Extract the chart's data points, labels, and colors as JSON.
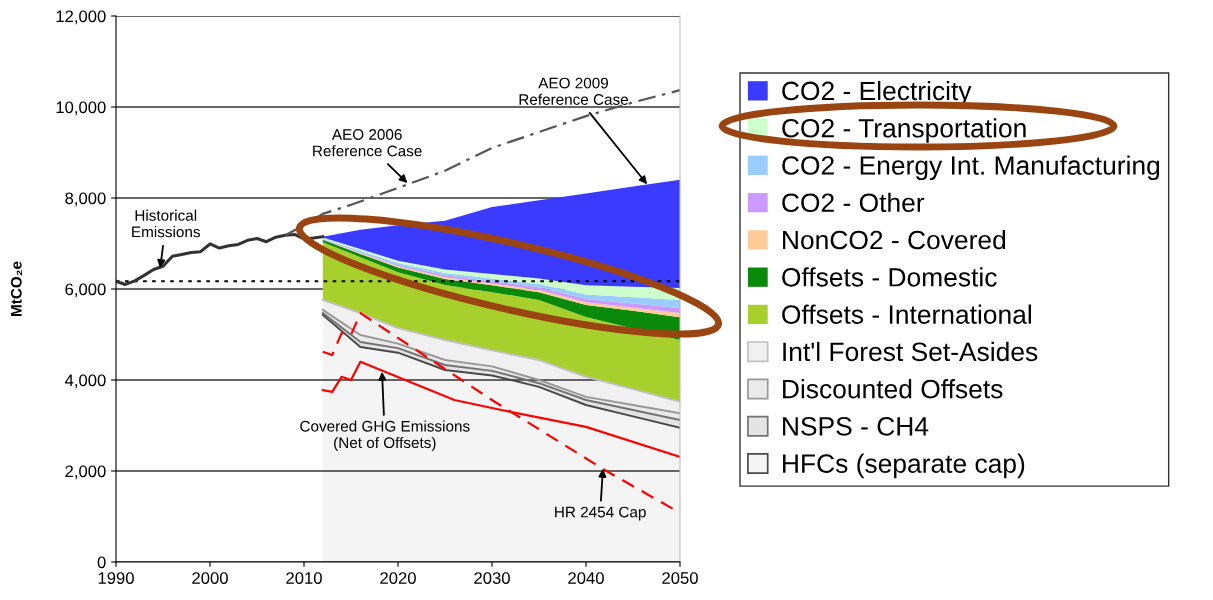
{
  "chart_data": {
    "type": "area",
    "stacked": true,
    "ylabel": "MtCO₂e",
    "x": [
      2012,
      2016,
      2020,
      2025,
      2030,
      2035,
      2040,
      2045,
      2050
    ],
    "xlim": [
      1990,
      2050
    ],
    "xticks": [
      1990,
      2000,
      2010,
      2020,
      2030,
      2040,
      2050
    ],
    "ylim": [
      0,
      12000
    ],
    "yticks": [
      0,
      {
        "value": 2000,
        "label": "2,000"
      },
      {
        "value": 4000,
        "label": "4,000"
      },
      {
        "value": 6000,
        "label": "6,000"
      },
      {
        "value": 8000,
        "label": "8,000"
      },
      {
        "value": 10000,
        "label": "10,000"
      },
      {
        "value": 12000,
        "label": "12,000"
      }
    ],
    "grid": "y",
    "legend": "right",
    "series": [
      {
        "name": "HFCs (separate cap)",
        "color": "#f4f4f4",
        "values": [
          5430,
          4725,
          4600,
          4220,
          4100,
          3850,
          3450,
          3200,
          2950
        ]
      },
      {
        "name": "NSPS - CH4",
        "color": "#e4e4e4",
        "values": [
          40,
          110,
          100,
          110,
          100,
          80,
          110,
          140,
          170
        ]
      },
      {
        "name": "Discounted Offsets",
        "color": "#eaeaea",
        "values": [
          70,
          155,
          100,
          110,
          100,
          70,
          70,
          110,
          150
        ]
      },
      {
        "name": "Int'l Forest Set-Asides",
        "color": "#f0f0f0",
        "values": [
          220,
          480,
          340,
          440,
          350,
          440,
          440,
          350,
          250
        ]
      },
      {
        "name": "Offsets - International",
        "color": "#a8d02c",
        "values": [
          1270,
          1230,
          1230,
          1210,
          1280,
          1320,
          1315,
          1330,
          1360
        ]
      },
      {
        "name": "Offsets - Domestic",
        "color": "#0a8a0a",
        "values": [
          50,
          70,
          100,
          130,
          150,
          170,
          265,
          390,
          500
        ]
      },
      {
        "name": "NonCO2 - Covered",
        "color": "#ffcc99",
        "values": [
          10,
          20,
          30,
          40,
          40,
          50,
          60,
          70,
          90
        ]
      },
      {
        "name": "CO2 - Other",
        "color": "#cc99ff",
        "values": [
          10,
          20,
          30,
          40,
          50,
          60,
          70,
          90,
          110
        ]
      },
      {
        "name": "CO2 - Energy Int. Manufacturing",
        "color": "#99ccff",
        "values": [
          10,
          30,
          40,
          50,
          60,
          70,
          100,
          140,
          180
        ]
      },
      {
        "name": "CO2 - Transportation",
        "color": "#ccffcc",
        "values": [
          20,
          40,
          50,
          80,
          100,
          120,
          200,
          230,
          260
        ]
      },
      {
        "name": "CO2 - Electricity",
        "color": "#3b3bff",
        "values": [
          20,
          420,
          780,
          1070,
          1470,
          1720,
          2020,
          2200,
          2380
        ]
      },
      {
        "type": "line",
        "color": "#333333",
        "x": [
          1990,
          1991,
          1992,
          1993,
          1994,
          1995,
          1996,
          1997,
          1998,
          1999,
          2000,
          2001,
          2002,
          2003,
          2004,
          2005,
          2006,
          2007,
          2008,
          2009,
          2010,
          2011,
          2012
        ],
        "values": [
          6170,
          6100,
          6180,
          6300,
          6430,
          6500,
          6720,
          6760,
          6800,
          6820,
          6990,
          6900,
          6950,
          6980,
          7070,
          7110,
          7040,
          7140,
          7180,
          7200,
          7100,
          7120,
          7150
        ]
      },
      {
        "type": "line",
        "color": "#555555",
        "line_style": "dashdot",
        "x": [
          2008,
          2010,
          2012,
          2015,
          2020,
          2025,
          2030,
          2035,
          2040,
          2045,
          2050
        ],
        "values": [
          7180,
          7400,
          7650,
          7850,
          8220,
          8600,
          9100,
          9450,
          9800,
          10100,
          10370
        ]
      },
      {
        "type": "line",
        "color": "#ff0000",
        "line_style": "dashed",
        "x": [
          2012,
          2013,
          2014,
          2015,
          2016,
          2030,
          2042,
          2050
        ],
        "values": [
          4620,
          4550,
          5030,
          4990,
          5470,
          3560,
          2020,
          1080
        ]
      },
      {
        "type": "line",
        "color": "#ff0000",
        "x": [
          2012,
          2013,
          2014,
          2015,
          2016,
          2026,
          2031,
          2040,
          2050
        ],
        "values": [
          3780,
          3740,
          4070,
          4000,
          4400,
          3560,
          3340,
          2970,
          2310
        ]
      }
    ],
    "ref_lines": [
      {
        "axis": "y",
        "value": 6170,
        "color": "#000000",
        "line_style": "dotted"
      }
    ],
    "annotations": [
      {
        "text": "Historical\nEmissions",
        "x": 1994.7,
        "y": 6460
      },
      {
        "text": "AEO 2006\nReference Case",
        "x": 2021,
        "y": 8330
      },
      {
        "text": "AEO 2009\nReference Case",
        "x": 2046.5,
        "y": 8300
      },
      {
        "text": "Covered GHG Emissions\n(Net of Offsets)",
        "x": 2018.3,
        "y": 4180
      },
      {
        "text": "HR 2454 Cap",
        "x": 2041.8,
        "y": 2050
      }
    ]
  }
}
